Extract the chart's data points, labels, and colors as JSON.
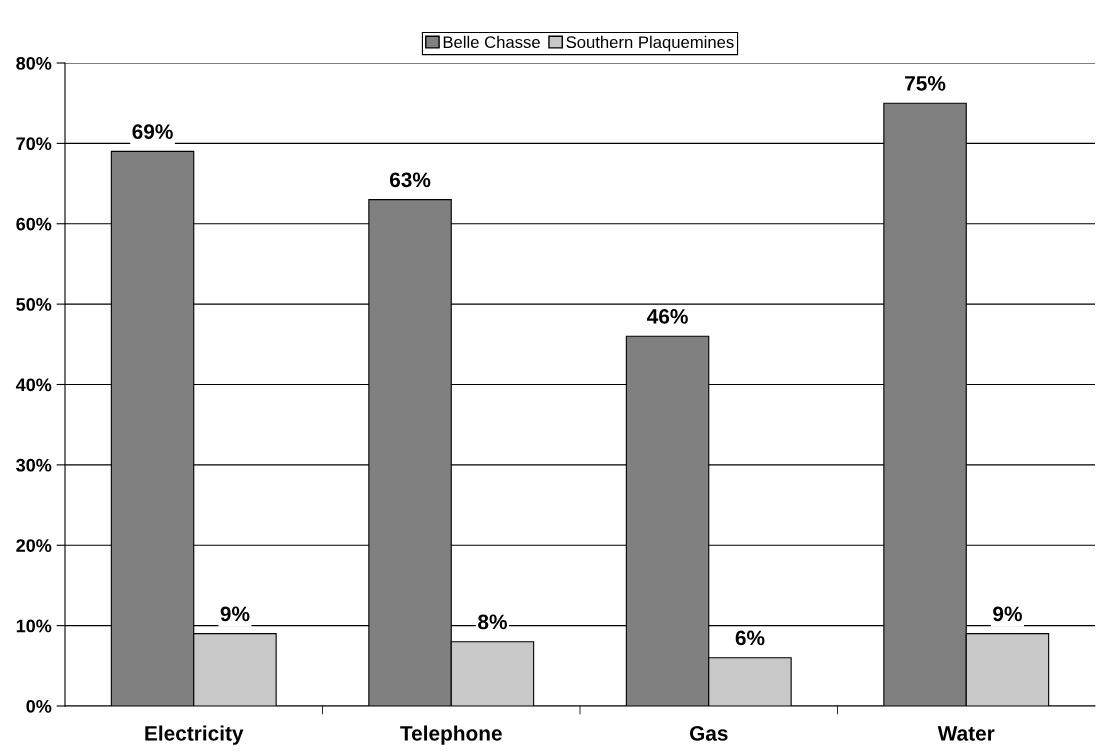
{
  "chart_data": {
    "type": "bar",
    "categories": [
      "Electricity",
      "Telephone",
      "Gas",
      "Water"
    ],
    "series": [
      {
        "name": "Belle Chasse",
        "color": "#808080",
        "values": [
          69,
          63,
          46,
          75
        ],
        "value_labels": [
          "69%",
          "63%",
          "46%",
          "75%"
        ]
      },
      {
        "name": "Southern Plaquemines",
        "color": "#c8c8c8",
        "values": [
          9,
          8,
          6,
          9
        ],
        "value_labels": [
          "9%",
          "8%",
          "6%",
          "9%"
        ]
      }
    ],
    "ylim": [
      0,
      80
    ],
    "yticks": [
      {
        "value": 0,
        "label": "0%"
      },
      {
        "value": 10,
        "label": "10%"
      },
      {
        "value": 20,
        "label": "20%"
      },
      {
        "value": 30,
        "label": "30%"
      },
      {
        "value": 40,
        "label": "40%"
      },
      {
        "value": 50,
        "label": "50%"
      },
      {
        "value": 60,
        "label": "60%"
      },
      {
        "value": 70,
        "label": "70%"
      },
      {
        "value": 80,
        "label": "80%"
      }
    ],
    "grid": "y",
    "legend": "top"
  }
}
